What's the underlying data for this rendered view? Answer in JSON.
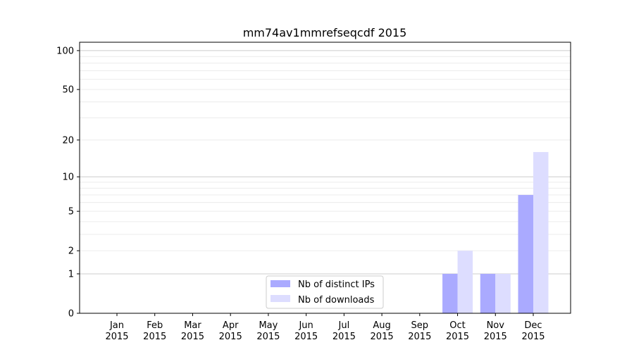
{
  "chart_data": {
    "type": "bar",
    "title": "mm74av1mmrefseqcdf 2015",
    "xlabel": "",
    "ylabel": "",
    "yscale": "log(1+y)",
    "ylim": [
      0,
      116
    ],
    "yticks": [
      0,
      1,
      2,
      5,
      10,
      20,
      50,
      100
    ],
    "ytick_labels": [
      "0",
      "1",
      "2",
      "5",
      "10",
      "20",
      "50",
      "100"
    ],
    "grid": true,
    "legend_position": "lower-center",
    "categories": [
      "Jan\n2015",
      "Feb\n2015",
      "Mar\n2015",
      "Apr\n2015",
      "May\n2015",
      "Jun\n2015",
      "Jul\n2015",
      "Aug\n2015",
      "Sep\n2015",
      "Oct\n2015",
      "Nov\n2015",
      "Dec\n2015"
    ],
    "series": [
      {
        "name": "Nb of distinct IPs",
        "color": "#aaaaff",
        "values": [
          0,
          0,
          0,
          0,
          0,
          0,
          0,
          0,
          0,
          1,
          1,
          7
        ]
      },
      {
        "name": "Nb of downloads",
        "color": "#ddddff",
        "values": [
          0,
          0,
          0,
          0,
          0,
          0,
          0,
          0,
          0,
          2,
          1,
          16
        ]
      }
    ]
  }
}
